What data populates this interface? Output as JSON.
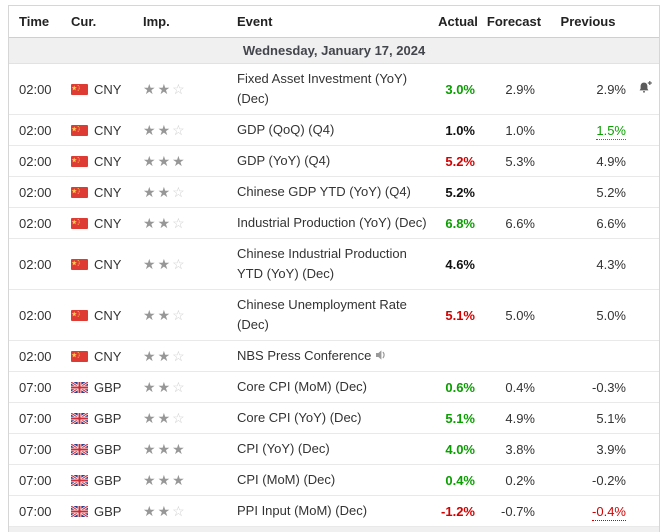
{
  "table": {
    "columns": [
      "Time",
      "Cur.",
      "Imp.",
      "Event",
      "Actual",
      "Forecast",
      "Previous"
    ],
    "date_header": "Wednesday, January 17, 2024"
  },
  "colors": {
    "positive": "#0a9e00",
    "negative": "#d40000",
    "neutral": "#111111",
    "star_filled": "#979797",
    "star_empty": "#cdcdcd",
    "date_row_bg": "#f0f0f0"
  },
  "icons": {
    "china_flag": "china-flag-icon",
    "uk_flag": "uk-flag-icon",
    "speaker": "speaker-icon",
    "alert_bell": "bell-plus-icon",
    "star": "star-icon"
  },
  "rows": [
    {
      "time": "02:00",
      "currency": "CNY",
      "flag": "cn",
      "importance": 2,
      "event": "Fixed Asset Investment (YoY) (Dec)",
      "speaker": false,
      "actual": "3.0%",
      "actual_color": "positive",
      "forecast": "2.9%",
      "previous": "2.9%",
      "previous_color": "plain",
      "previous_revised": false,
      "alert": true
    },
    {
      "time": "02:00",
      "currency": "CNY",
      "flag": "cn",
      "importance": 2,
      "event": "GDP (QoQ) (Q4)",
      "speaker": false,
      "actual": "1.0%",
      "actual_color": "neutral",
      "forecast": "1.0%",
      "previous": "1.5%",
      "previous_color": "positive",
      "previous_revised": true,
      "alert": false
    },
    {
      "time": "02:00",
      "currency": "CNY",
      "flag": "cn",
      "importance": 3,
      "event": "GDP (YoY) (Q4)",
      "speaker": false,
      "actual": "5.2%",
      "actual_color": "negative",
      "forecast": "5.3%",
      "previous": "4.9%",
      "previous_color": "plain",
      "previous_revised": false,
      "alert": false
    },
    {
      "time": "02:00",
      "currency": "CNY",
      "flag": "cn",
      "importance": 2,
      "event": "Chinese GDP YTD (YoY) (Q4)",
      "speaker": false,
      "actual": "5.2%",
      "actual_color": "neutral",
      "forecast": "",
      "previous": "5.2%",
      "previous_color": "plain",
      "previous_revised": false,
      "alert": false
    },
    {
      "time": "02:00",
      "currency": "CNY",
      "flag": "cn",
      "importance": 2,
      "event": "Industrial Production (YoY) (Dec)",
      "speaker": false,
      "actual": "6.8%",
      "actual_color": "positive",
      "forecast": "6.6%",
      "previous": "6.6%",
      "previous_color": "plain",
      "previous_revised": false,
      "alert": false
    },
    {
      "time": "02:00",
      "currency": "CNY",
      "flag": "cn",
      "importance": 2,
      "event": "Chinese Industrial Production YTD (YoY) (Dec)",
      "speaker": false,
      "actual": "4.6%",
      "actual_color": "neutral",
      "forecast": "",
      "previous": "4.3%",
      "previous_color": "plain",
      "previous_revised": false,
      "alert": false
    },
    {
      "time": "02:00",
      "currency": "CNY",
      "flag": "cn",
      "importance": 2,
      "event": "Chinese Unemployment Rate (Dec)",
      "speaker": false,
      "actual": "5.1%",
      "actual_color": "negative",
      "forecast": "5.0%",
      "previous": "5.0%",
      "previous_color": "plain",
      "previous_revised": false,
      "alert": false
    },
    {
      "time": "02:00",
      "currency": "CNY",
      "flag": "cn",
      "importance": 2,
      "event": "NBS Press Conference",
      "speaker": true,
      "actual": "",
      "actual_color": "plain",
      "forecast": "",
      "previous": "",
      "previous_color": "plain",
      "previous_revised": false,
      "alert": false
    },
    {
      "time": "07:00",
      "currency": "GBP",
      "flag": "gb",
      "importance": 2,
      "event": "Core CPI (MoM) (Dec)",
      "speaker": false,
      "actual": "0.6%",
      "actual_color": "positive",
      "forecast": "0.4%",
      "previous": "-0.3%",
      "previous_color": "plain",
      "previous_revised": false,
      "alert": false
    },
    {
      "time": "07:00",
      "currency": "GBP",
      "flag": "gb",
      "importance": 2,
      "event": "Core CPI (YoY) (Dec)",
      "speaker": false,
      "actual": "5.1%",
      "actual_color": "positive",
      "forecast": "4.9%",
      "previous": "5.1%",
      "previous_color": "plain",
      "previous_revised": false,
      "alert": false
    },
    {
      "time": "07:00",
      "currency": "GBP",
      "flag": "gb",
      "importance": 3,
      "event": "CPI (YoY) (Dec)",
      "speaker": false,
      "actual": "4.0%",
      "actual_color": "positive",
      "forecast": "3.8%",
      "previous": "3.9%",
      "previous_color": "plain",
      "previous_revised": false,
      "alert": false
    },
    {
      "time": "07:00",
      "currency": "GBP",
      "flag": "gb",
      "importance": 3,
      "event": "CPI (MoM) (Dec)",
      "speaker": false,
      "actual": "0.4%",
      "actual_color": "positive",
      "forecast": "0.2%",
      "previous": "-0.2%",
      "previous_color": "plain",
      "previous_revised": false,
      "alert": false
    },
    {
      "time": "07:00",
      "currency": "GBP",
      "flag": "gb",
      "importance": 2,
      "event": "PPI Input (MoM) (Dec)",
      "speaker": false,
      "actual": "-1.2%",
      "actual_color": "negative",
      "forecast": "-0.7%",
      "previous": "-0.4%",
      "previous_color": "negative",
      "previous_revised": true,
      "alert": false
    }
  ]
}
